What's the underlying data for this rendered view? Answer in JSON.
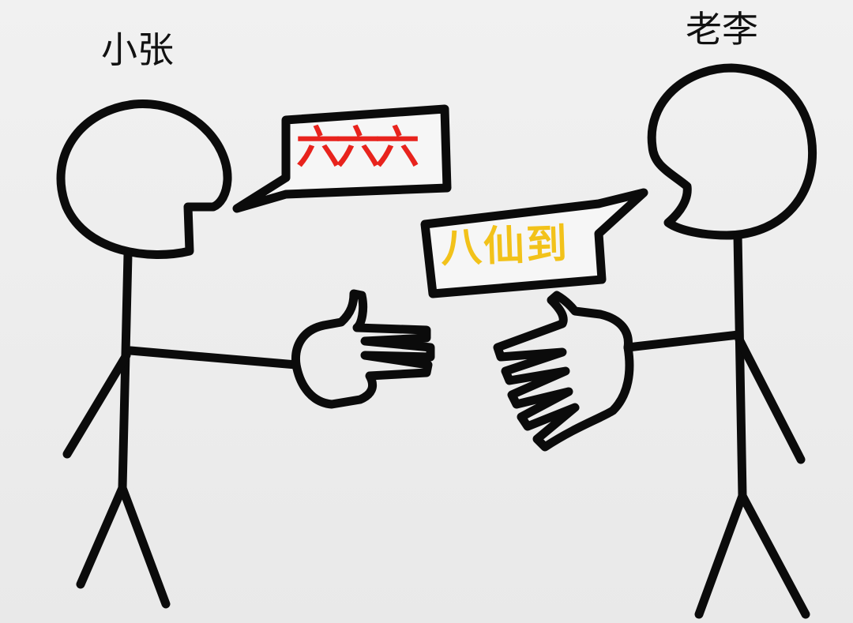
{
  "characters": {
    "left": {
      "name": "小张"
    },
    "right": {
      "name": "老李"
    }
  },
  "speech": {
    "left": {
      "text": "六六六",
      "color": "#e8231d"
    },
    "right": {
      "text": "八仙到",
      "color": "#f2c21a"
    }
  }
}
